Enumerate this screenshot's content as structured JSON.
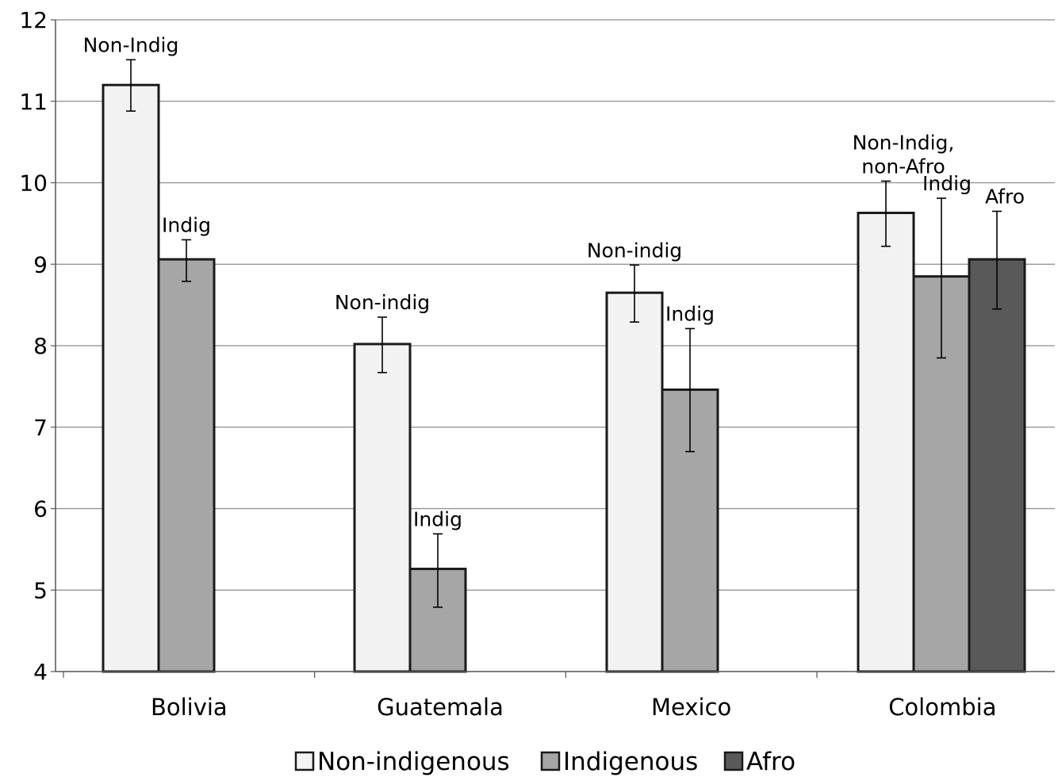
{
  "chart_data": {
    "type": "bar",
    "title": "",
    "xlabel": "",
    "ylabel": "",
    "ylim": [
      4,
      12
    ],
    "yticks": [
      "4",
      "5",
      "6",
      "7",
      "8",
      "9",
      "10",
      "11",
      "12"
    ],
    "grid": true,
    "legend_position": "bottom",
    "categories": [
      "Bolivia",
      "Guatemala",
      "Mexico",
      "Colombia"
    ],
    "series": [
      {
        "name": "Non-indigenous",
        "color": "#f2f2f2",
        "values": [
          11.2,
          8.02,
          8.65,
          9.63
        ],
        "err_low": [
          10.88,
          7.67,
          8.29,
          9.22
        ],
        "err_high": [
          11.51,
          8.35,
          8.99,
          10.02
        ],
        "labels": [
          [
            "Non-Indig"
          ],
          [
            "Non-indig"
          ],
          [
            "Non-indig"
          ],
          [
            "Non-Indig,",
            "non-Afro"
          ]
        ]
      },
      {
        "name": "Indigenous",
        "color": "#a6a6a6",
        "values": [
          9.06,
          5.26,
          7.46,
          8.85
        ],
        "err_low": [
          8.79,
          4.79,
          6.7,
          7.85
        ],
        "err_high": [
          9.3,
          5.69,
          8.21,
          9.81
        ],
        "labels": [
          [
            "Indig"
          ],
          [
            "Indig"
          ],
          [
            "Indig"
          ],
          [
            "Indig"
          ]
        ]
      },
      {
        "name": "Afro",
        "color": "#595959",
        "values": [
          null,
          null,
          null,
          9.06
        ],
        "err_low": [
          null,
          null,
          null,
          8.45
        ],
        "err_high": [
          null,
          null,
          null,
          9.65
        ],
        "labels": [
          null,
          null,
          null,
          [
            "Afro"
          ]
        ]
      }
    ]
  }
}
